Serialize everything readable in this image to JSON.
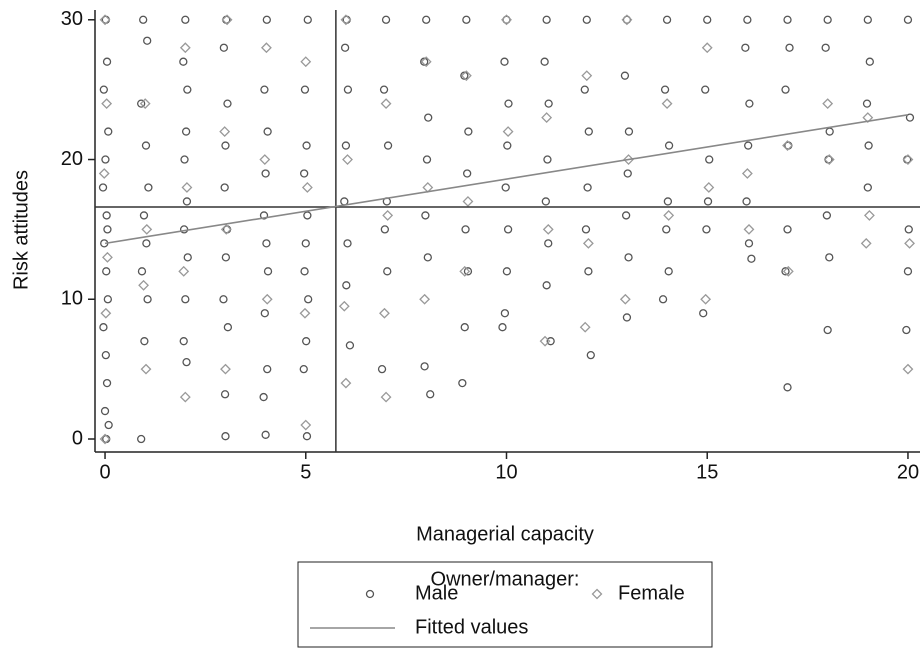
{
  "chart_data": {
    "type": "scatter",
    "x_label": "Managerial capacity",
    "y_label": "Risk attitudes",
    "legend_title": "Owner/manager:",
    "xlim": [
      -0.25,
      20.3
    ],
    "ylim": [
      -0.93,
      30.7
    ],
    "xticks": [
      0,
      5,
      10,
      15,
      20
    ],
    "yticks": [
      0,
      10,
      20,
      30
    ],
    "reference_lines": {
      "x": 5.75,
      "y": 16.6,
      "color": "#333333"
    },
    "series": [
      {
        "name": "Male",
        "kind": "scatter",
        "marker": "circle",
        "color": "#555555",
        "x": [
          0.02,
          0.05,
          -0.03,
          0.08,
          0.01,
          -0.05,
          0.04,
          0.06,
          -0.02,
          0.03,
          0.07,
          -0.04,
          0.02,
          0.05,
          0.0,
          0.09,
          0.03,
          0.95,
          1.05,
          0.9,
          1.02,
          1.08,
          0.97,
          1.03,
          0.92,
          1.06,
          0.98,
          0.9,
          2.0,
          1.95,
          2.05,
          2.02,
          1.98,
          2.04,
          1.97,
          2.06,
          2.0,
          1.96,
          2.03,
          3.02,
          2.96,
          3.05,
          3.0,
          2.98,
          3.04,
          3.01,
          2.95,
          3.06,
          2.99,
          3.0,
          4.03,
          3.97,
          4.05,
          4.0,
          3.96,
          4.02,
          4.06,
          3.98,
          4.04,
          3.95,
          4.0,
          5.05,
          4.98,
          5.02,
          4.96,
          5.04,
          5.0,
          4.97,
          5.06,
          5.01,
          4.95,
          5.03,
          6.02,
          5.98,
          6.05,
          6.0,
          5.96,
          6.04,
          6.01,
          6.1,
          7.0,
          6.95,
          7.05,
          7.02,
          6.97,
          7.03,
          6.9,
          8.0,
          7.95,
          8.05,
          8.02,
          7.98,
          8.04,
          7.96,
          8.1,
          9.0,
          8.95,
          9.05,
          9.02,
          8.98,
          9.04,
          8.96,
          8.9,
          10.0,
          9.95,
          10.05,
          10.02,
          9.98,
          10.04,
          10.01,
          9.96,
          9.9,
          11.0,
          10.95,
          11.05,
          11.02,
          10.98,
          11.04,
          11.0,
          11.1,
          12.0,
          11.95,
          12.05,
          12.02,
          11.98,
          12.04,
          12.1,
          13.0,
          12.95,
          13.05,
          13.02,
          12.98,
          13.04,
          13.0,
          14.0,
          13.95,
          14.05,
          14.02,
          13.98,
          14.04,
          13.9,
          15.0,
          14.95,
          15.05,
          15.02,
          14.98,
          14.9,
          16.0,
          15.95,
          16.05,
          16.02,
          15.98,
          16.04,
          16.1,
          17.0,
          17.05,
          16.95,
          17.02,
          17.0,
          16.95,
          17.0,
          18.0,
          17.95,
          18.05,
          18.02,
          17.98,
          18.04,
          18.0,
          19.0,
          19.05,
          18.98,
          19.02,
          19.0,
          20.0,
          20.05,
          19.98,
          20.02,
          20.0,
          19.96
        ],
        "values": [
          30,
          27,
          25,
          22,
          20,
          18,
          16,
          15,
          14,
          12,
          10,
          8,
          6,
          4,
          2,
          1,
          0,
          30,
          28.5,
          24,
          21,
          18,
          16,
          14,
          12,
          10,
          7,
          0,
          30,
          27,
          25,
          22,
          20,
          17,
          15,
          13,
          10,
          7,
          5.5,
          30,
          28,
          24,
          21,
          18,
          15,
          13,
          10,
          8,
          3.2,
          0.2,
          30,
          25,
          22,
          19,
          16,
          14,
          12,
          9,
          5,
          3,
          0.3,
          30,
          25,
          21,
          19,
          16,
          14,
          12,
          10,
          7,
          5,
          0.2,
          30,
          28,
          25,
          21,
          17,
          14,
          11,
          6.7,
          30,
          25,
          21,
          17,
          15,
          12,
          5,
          30,
          27,
          23,
          20,
          16,
          13,
          5.2,
          3.2,
          30,
          26,
          22,
          19,
          15,
          12,
          8,
          4,
          30,
          27,
          24,
          21,
          18,
          15,
          12,
          9,
          8,
          30,
          27,
          24,
          20,
          17,
          14,
          11,
          7,
          30,
          25,
          22,
          18,
          15,
          12,
          6,
          30,
          26,
          22,
          19,
          16,
          13,
          8.7,
          30,
          25,
          21,
          17,
          15,
          12,
          10,
          30,
          25,
          20,
          17,
          15,
          9,
          30,
          28,
          24,
          21,
          17,
          14,
          12.9,
          30,
          28,
          25,
          21,
          15,
          12,
          3.7,
          30,
          28,
          22,
          20,
          16,
          13,
          7.8,
          30,
          27,
          24,
          21,
          18,
          30,
          23,
          20,
          15,
          12,
          7.8
        ]
      },
      {
        "name": "Female",
        "kind": "scatter",
        "marker": "diamond",
        "color": "#999999",
        "x": [
          0.0,
          0.04,
          -0.02,
          0.06,
          0.02,
          0.0,
          1.0,
          1.04,
          0.96,
          1.02,
          2.0,
          2.04,
          1.96,
          2.0,
          3.04,
          2.98,
          3.02,
          3.0,
          4.02,
          3.98,
          4.04,
          5.0,
          5.04,
          4.98,
          5.0,
          6.0,
          6.04,
          5.96,
          6.0,
          7.0,
          7.04,
          6.96,
          7.0,
          8.0,
          8.04,
          7.96,
          9.0,
          9.04,
          8.96,
          10.0,
          10.04,
          11.0,
          11.04,
          10.96,
          12.0,
          12.04,
          11.96,
          13.0,
          13.04,
          12.96,
          14.0,
          14.04,
          15.0,
          15.04,
          14.96,
          16.0,
          16.04,
          17.0,
          17.02,
          18.0,
          18.04,
          19.0,
          19.04,
          18.96,
          20.0,
          20.04,
          20.0
        ],
        "values": [
          30,
          24,
          19,
          13,
          9,
          0,
          24,
          15,
          11,
          5,
          28,
          18,
          12,
          3,
          30,
          22,
          15,
          5,
          28,
          20,
          10,
          27,
          18,
          9,
          1,
          30,
          20,
          9.5,
          4,
          24,
          16,
          9,
          3,
          27,
          18,
          10,
          26,
          17,
          12,
          30,
          22,
          23,
          15,
          7,
          26,
          14,
          8,
          30,
          20,
          10,
          24,
          16,
          28,
          18,
          10,
          19,
          15,
          21,
          12,
          24,
          20,
          23,
          16,
          14,
          20,
          14,
          5
        ]
      },
      {
        "name": "Fitted values",
        "kind": "line",
        "color": "#888888",
        "x": [
          0,
          20
        ],
        "values": [
          14,
          23.2
        ]
      }
    ]
  }
}
